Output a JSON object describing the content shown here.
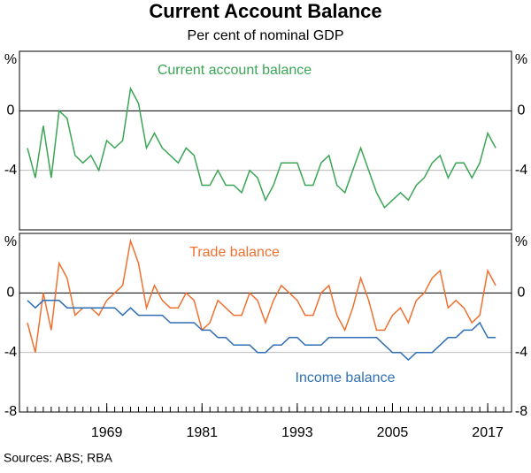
{
  "title": "Current Account Balance",
  "subtitle": "Per cent of nominal GDP",
  "source": "Sources: ABS; RBA",
  "chart_data": [
    {
      "type": "line",
      "xlim": [
        1958,
        2020
      ],
      "ylim": [
        -8,
        4
      ],
      "yticks": [
        {
          "value": 4,
          "label": "%"
        },
        0,
        -4
      ],
      "x": [
        1959,
        1960,
        1961,
        1962,
        1963,
        1964,
        1965,
        1966,
        1967,
        1968,
        1969,
        1970,
        1971,
        1972,
        1973,
        1974,
        1975,
        1976,
        1977,
        1978,
        1979,
        1980,
        1981,
        1982,
        1983,
        1984,
        1985,
        1986,
        1987,
        1988,
        1989,
        1990,
        1991,
        1992,
        1993,
        1994,
        1995,
        1996,
        1997,
        1998,
        1999,
        2000,
        2001,
        2002,
        2003,
        2004,
        2005,
        2006,
        2007,
        2008,
        2009,
        2010,
        2011,
        2012,
        2013,
        2014,
        2015,
        2016,
        2017,
        2018
      ],
      "series": [
        {
          "name": "Current account balance",
          "color": "#3aa655",
          "values": [
            -2.5,
            -4.5,
            -1,
            -4.5,
            0,
            -0.5,
            -3,
            -3.5,
            -3,
            -4,
            -2,
            -2.5,
            -2,
            1.5,
            0.5,
            -2.5,
            -1.5,
            -2.5,
            -3,
            -3.5,
            -2.5,
            -3,
            -5,
            -5,
            -4,
            -5,
            -5,
            -5.5,
            -4,
            -4.5,
            -6,
            -5,
            -3.5,
            -3.5,
            -3.5,
            -5,
            -5,
            -3.5,
            -3,
            -5,
            -5.5,
            -4,
            -2.5,
            -4,
            -5.5,
            -6.5,
            -6,
            -5.5,
            -6,
            -5,
            -4.5,
            -3.5,
            -3,
            -4.5,
            -3.5,
            -3.5,
            -4.5,
            -3.5,
            -1.5,
            -2.5
          ]
        }
      ]
    },
    {
      "type": "line",
      "xlim": [
        1958,
        2020
      ],
      "ylim": [
        -8,
        4
      ],
      "yticks": [
        {
          "value": 4,
          "label": "%"
        },
        0,
        -4,
        -8
      ],
      "xticks": [
        1969,
        1981,
        1993,
        2005,
        2017
      ],
      "xminorticks": [
        1958,
        1959,
        1960,
        1961,
        1962,
        1963,
        1964,
        1965,
        1966,
        1967,
        1968,
        1969,
        1970,
        1971,
        1972,
        1973,
        1974,
        1975,
        1976,
        1977,
        1978,
        1979,
        1980,
        1981,
        1982,
        1983,
        1984,
        1985,
        1986,
        1987,
        1988,
        1989,
        1990,
        1991,
        1992,
        1993,
        1994,
        1995,
        1996,
        1997,
        1998,
        1999,
        2000,
        2001,
        2002,
        2003,
        2004,
        2005,
        2006,
        2007,
        2008,
        2009,
        2010,
        2011,
        2012,
        2013,
        2014,
        2015,
        2016,
        2017,
        2018,
        2019,
        2020
      ],
      "x": [
        1959,
        1960,
        1961,
        1962,
        1963,
        1964,
        1965,
        1966,
        1967,
        1968,
        1969,
        1970,
        1971,
        1972,
        1973,
        1974,
        1975,
        1976,
        1977,
        1978,
        1979,
        1980,
        1981,
        1982,
        1983,
        1984,
        1985,
        1986,
        1987,
        1988,
        1989,
        1990,
        1991,
        1992,
        1993,
        1994,
        1995,
        1996,
        1997,
        1998,
        1999,
        2000,
        2001,
        2002,
        2003,
        2004,
        2005,
        2006,
        2007,
        2008,
        2009,
        2010,
        2011,
        2012,
        2013,
        2014,
        2015,
        2016,
        2017,
        2018
      ],
      "series": [
        {
          "name": "Trade balance",
          "color": "#f07030",
          "values": [
            -2,
            -4,
            0,
            -2.5,
            2,
            1,
            -1.5,
            -1,
            -1,
            -1.5,
            -0.5,
            0,
            0.5,
            3.5,
            2,
            -1,
            0.5,
            -0.5,
            -1,
            -1,
            0,
            -0.5,
            -2.5,
            -2,
            -0.5,
            -1,
            -1.5,
            -1.5,
            0,
            -0.5,
            -2,
            -0.5,
            0.5,
            0,
            -0.5,
            -1.5,
            -1.5,
            0,
            0.5,
            -1.5,
            -2.5,
            -1,
            1,
            -0.5,
            -2.5,
            -2.5,
            -1.5,
            -1,
            -2,
            -0.5,
            0,
            1,
            1.5,
            -1,
            -0.5,
            -1,
            -2,
            -1.5,
            1.5,
            0.5
          ]
        },
        {
          "name": "Income balance",
          "color": "#2f6fb5",
          "values": [
            -0.5,
            -1,
            -0.5,
            -0.5,
            -0.5,
            -1,
            -1,
            -1,
            -1,
            -1,
            -1,
            -1,
            -1.5,
            -1,
            -1.5,
            -1.5,
            -1.5,
            -1.5,
            -2,
            -2,
            -2,
            -2,
            -2.5,
            -2.5,
            -3,
            -3,
            -3.5,
            -3.5,
            -3.5,
            -4,
            -4,
            -3.5,
            -3.5,
            -3,
            -3,
            -3.5,
            -3.5,
            -3.5,
            -3,
            -3,
            -3,
            -3,
            -3,
            -3,
            -3,
            -3.5,
            -4,
            -4,
            -4.5,
            -4,
            -4,
            -4,
            -3.5,
            -3,
            -3,
            -2.5,
            -2.5,
            -2,
            -3,
            -3
          ]
        }
      ]
    }
  ]
}
